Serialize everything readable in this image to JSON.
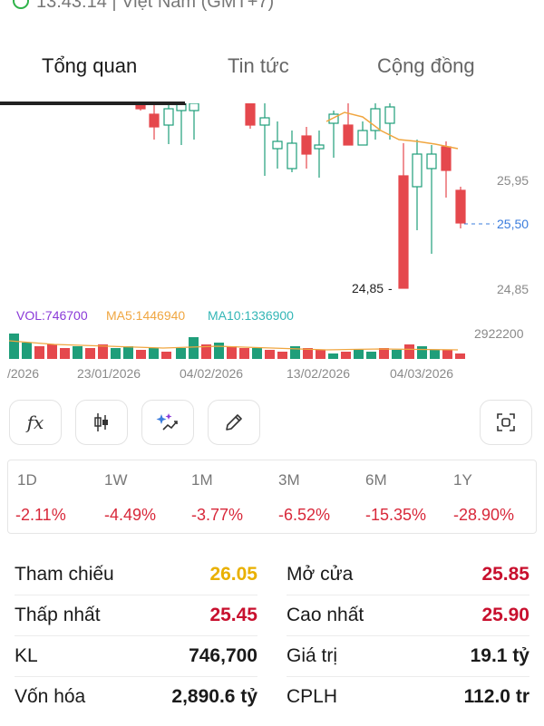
{
  "status_bar": {
    "time_text": "13:43:14 | Việt Nam (GMT+7)"
  },
  "tabs": [
    {
      "label": "Tổng quan",
      "active": true
    },
    {
      "label": "Tin tức",
      "active": false
    },
    {
      "label": "Cộng đồng",
      "active": false
    }
  ],
  "chart_data": {
    "type": "candlestick",
    "price_labels": [
      "25,95",
      "24,85"
    ],
    "current_price_label": "25,50",
    "low_marker_label": "24,85",
    "volume_axis_label": "2922200",
    "volume_legend": {
      "vol": "VOL:746700",
      "ma5": "MA5:1446940",
      "ma10": "MA10:1336900"
    },
    "date_labels": [
      "/2026",
      "23/01/2026",
      "04/02/2026",
      "13/02/2026",
      "04/03/2026"
    ],
    "colors": {
      "up": "#1f9e7a",
      "down": "#e5484d",
      "ma": "#f0a640",
      "current": "#3b7ddd",
      "vol_legend": "#8a3ad8",
      "ma5_legend": "#f0a640",
      "ma10_legend": "#33b6b6"
    }
  },
  "toolbar": {
    "buttons": [
      {
        "icon": "function-icon",
        "glyph": "fx"
      },
      {
        "icon": "candlestick-icon"
      },
      {
        "icon": "magic-sparkle-icon"
      },
      {
        "icon": "pencil-icon"
      },
      {
        "icon": "fullscreen-capture-icon"
      }
    ]
  },
  "performance": [
    {
      "period": "1D",
      "change": "-2.11%"
    },
    {
      "period": "1W",
      "change": "-4.49%"
    },
    {
      "period": "1M",
      "change": "-3.77%"
    },
    {
      "period": "3M",
      "change": "-6.52%"
    },
    {
      "period": "6M",
      "change": "-15.35%"
    },
    {
      "period": "1Y",
      "change": "-28.90%"
    }
  ],
  "stats": {
    "ref_label": "Tham chiếu",
    "ref_value": "26.05",
    "ref_color": "#e9b000",
    "open_label": "Mở cửa",
    "open_value": "25.85",
    "open_color": "#c8102e",
    "low_label": "Thấp nhất",
    "low_value": "25.45",
    "low_color": "#c8102e",
    "high_label": "Cao nhất",
    "high_value": "25.90",
    "high_color": "#c8102e",
    "vol_label": "KL",
    "vol_value": "746,700",
    "value_label": "Giá trị",
    "value_value": "19.1 tỷ",
    "cap_label": "Vốn hóa",
    "cap_value": "2,890.6 tỷ",
    "shares_label": "CPLH",
    "shares_value": "112.0 tr"
  }
}
